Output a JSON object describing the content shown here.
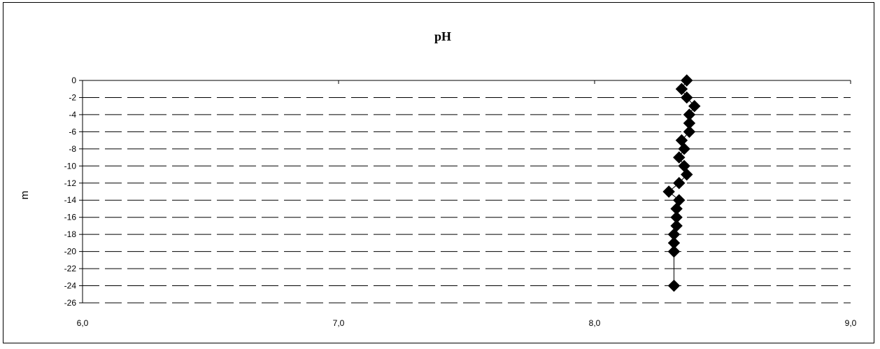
{
  "chart_data": {
    "type": "scatter",
    "title": "pH",
    "xlabel": "",
    "ylabel": "m",
    "xlim": [
      6.0,
      9.0
    ],
    "ylim": [
      -26,
      0
    ],
    "x_ticks": [
      "6,0",
      "7,0",
      "8,0",
      "9,0"
    ],
    "x_tick_values": [
      6.0,
      7.0,
      8.0,
      9.0
    ],
    "y_ticks": [
      "0",
      "-2",
      "-4",
      "-6",
      "-8",
      "-10",
      "-12",
      "-14",
      "-16",
      "-18",
      "-20",
      "-22",
      "-24",
      "-26"
    ],
    "y_tick_values": [
      0,
      -2,
      -4,
      -6,
      -8,
      -10,
      -12,
      -14,
      -16,
      -18,
      -20,
      -22,
      -24,
      -26
    ],
    "grid": "horizontal-dashed",
    "marker": "diamond",
    "connect_line": true,
    "colors": {
      "marker": "#000000",
      "line": "#000000",
      "grid": "#000000"
    },
    "points": [
      {
        "x": 8.36,
        "y": 0
      },
      {
        "x": 8.34,
        "y": -1
      },
      {
        "x": 8.36,
        "y": -2
      },
      {
        "x": 8.39,
        "y": -3
      },
      {
        "x": 8.37,
        "y": -4
      },
      {
        "x": 8.37,
        "y": -5
      },
      {
        "x": 8.37,
        "y": -6
      },
      {
        "x": 8.34,
        "y": -7
      },
      {
        "x": 8.35,
        "y": -8
      },
      {
        "x": 8.33,
        "y": -9
      },
      {
        "x": 8.35,
        "y": -10
      },
      {
        "x": 8.36,
        "y": -11
      },
      {
        "x": 8.33,
        "y": -12
      },
      {
        "x": 8.29,
        "y": -13
      },
      {
        "x": 8.33,
        "y": -14
      },
      {
        "x": 8.32,
        "y": -15
      },
      {
        "x": 8.32,
        "y": -16
      },
      {
        "x": 8.32,
        "y": -17
      },
      {
        "x": 8.31,
        "y": -18
      },
      {
        "x": 8.31,
        "y": -19
      },
      {
        "x": 8.31,
        "y": -20
      },
      {
        "x": 8.31,
        "y": -24
      }
    ]
  }
}
